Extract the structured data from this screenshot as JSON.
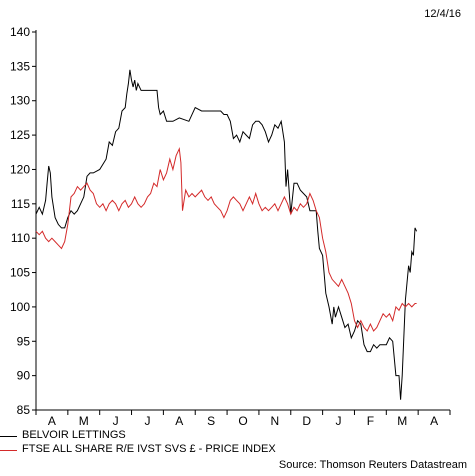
{
  "date_label": "12/4/16",
  "source": "Source: Thomson Reuters Datastream",
  "colors": {
    "belvoir": "#000000",
    "ftse": "#d42a2a",
    "axis": "#000000"
  },
  "chart_data": {
    "type": "line",
    "ylim": [
      85,
      140
    ],
    "yticks": [
      85,
      90,
      95,
      100,
      105,
      110,
      115,
      120,
      125,
      130,
      135,
      140
    ],
    "months": [
      "A",
      "M",
      "J",
      "J",
      "A",
      "S",
      "O",
      "N",
      "D",
      "J",
      "F",
      "M",
      "A"
    ],
    "grid": false,
    "legend_position": "bottom-left",
    "series": [
      {
        "name": "BELVOIR LETTINGS",
        "color": "#000000",
        "values": [
          [
            0.0,
            113.5
          ],
          [
            0.1,
            114.5
          ],
          [
            0.2,
            113.5
          ],
          [
            0.3,
            115.5
          ],
          [
            0.35,
            118
          ],
          [
            0.4,
            120.5
          ],
          [
            0.45,
            119.5
          ],
          [
            0.5,
            116
          ],
          [
            0.6,
            113
          ],
          [
            0.7,
            112
          ],
          [
            0.8,
            111.5
          ],
          [
            0.9,
            111.5
          ],
          [
            1.0,
            113
          ],
          [
            1.1,
            114
          ],
          [
            1.2,
            113.5
          ],
          [
            1.3,
            114
          ],
          [
            1.4,
            115
          ],
          [
            1.5,
            116
          ],
          [
            1.6,
            119
          ],
          [
            1.7,
            119.5
          ],
          [
            1.8,
            119.5
          ],
          [
            2.0,
            120
          ],
          [
            2.2,
            121.5
          ],
          [
            2.3,
            124
          ],
          [
            2.4,
            123.5
          ],
          [
            2.5,
            125.5
          ],
          [
            2.6,
            126
          ],
          [
            2.7,
            128.5
          ],
          [
            2.8,
            129
          ],
          [
            2.85,
            131
          ],
          [
            2.9,
            132.5
          ],
          [
            2.95,
            134.5
          ],
          [
            3.0,
            133
          ],
          [
            3.05,
            132
          ],
          [
            3.1,
            133
          ],
          [
            3.15,
            131.5
          ],
          [
            3.2,
            132.5
          ],
          [
            3.3,
            131.5
          ],
          [
            3.5,
            131.5
          ],
          [
            3.7,
            131.5
          ],
          [
            3.8,
            131.5
          ],
          [
            3.85,
            129
          ],
          [
            3.9,
            128
          ],
          [
            4.0,
            128.5
          ],
          [
            4.1,
            127
          ],
          [
            4.3,
            127
          ],
          [
            4.5,
            127.5
          ],
          [
            4.8,
            127
          ],
          [
            5.0,
            129
          ],
          [
            5.2,
            128.5
          ],
          [
            5.5,
            128.5
          ],
          [
            5.8,
            128.5
          ],
          [
            5.9,
            128
          ],
          [
            6.0,
            128
          ],
          [
            6.1,
            127
          ],
          [
            6.2,
            124.5
          ],
          [
            6.3,
            125
          ],
          [
            6.4,
            124
          ],
          [
            6.5,
            125.5
          ],
          [
            6.6,
            125
          ],
          [
            6.7,
            124.5
          ],
          [
            6.8,
            126.5
          ],
          [
            6.9,
            127
          ],
          [
            7.0,
            127
          ],
          [
            7.1,
            126.5
          ],
          [
            7.2,
            125.5
          ],
          [
            7.3,
            124
          ],
          [
            7.4,
            125
          ],
          [
            7.5,
            126.5
          ],
          [
            7.6,
            126
          ],
          [
            7.7,
            127
          ],
          [
            7.8,
            124
          ],
          [
            7.85,
            117.5
          ],
          [
            7.9,
            120
          ],
          [
            8.0,
            113.5
          ],
          [
            8.1,
            118
          ],
          [
            8.2,
            118
          ],
          [
            8.3,
            117
          ],
          [
            8.5,
            116
          ],
          [
            8.6,
            114
          ],
          [
            8.7,
            114
          ],
          [
            8.8,
            114
          ],
          [
            8.85,
            111
          ],
          [
            8.9,
            108.5
          ],
          [
            9.0,
            107.5
          ],
          [
            9.1,
            102
          ],
          [
            9.2,
            100
          ],
          [
            9.3,
            97.5
          ],
          [
            9.35,
            100
          ],
          [
            9.4,
            98.5
          ],
          [
            9.5,
            100
          ],
          [
            9.6,
            98.5
          ],
          [
            9.7,
            97
          ],
          [
            9.8,
            97.5
          ],
          [
            9.9,
            95.5
          ],
          [
            10.0,
            96.5
          ],
          [
            10.1,
            98
          ],
          [
            10.2,
            97.5
          ],
          [
            10.3,
            94.5
          ],
          [
            10.4,
            93.5
          ],
          [
            10.5,
            93.5
          ],
          [
            10.6,
            94.5
          ],
          [
            10.7,
            94
          ],
          [
            10.8,
            94.5
          ],
          [
            11.0,
            94.5
          ],
          [
            11.1,
            95.5
          ],
          [
            11.2,
            95
          ],
          [
            11.3,
            90
          ],
          [
            11.4,
            90
          ],
          [
            11.45,
            86.5
          ],
          [
            11.5,
            90
          ],
          [
            11.6,
            101
          ],
          [
            11.7,
            106
          ],
          [
            11.75,
            105
          ],
          [
            11.8,
            108
          ],
          [
            11.85,
            107.5
          ],
          [
            11.9,
            111.5
          ],
          [
            11.95,
            111
          ]
        ]
      },
      {
        "name": "FTSE ALL SHARE R/E IVST SVS £ - PRICE INDEX",
        "color": "#d42a2a",
        "values": [
          [
            0.0,
            111
          ],
          [
            0.1,
            110.5
          ],
          [
            0.2,
            111
          ],
          [
            0.3,
            110
          ],
          [
            0.4,
            109.5
          ],
          [
            0.5,
            110
          ],
          [
            0.6,
            109.5
          ],
          [
            0.7,
            109
          ],
          [
            0.8,
            108.5
          ],
          [
            0.9,
            109.5
          ],
          [
            1.0,
            112
          ],
          [
            1.1,
            116
          ],
          [
            1.2,
            116.5
          ],
          [
            1.3,
            117.5
          ],
          [
            1.4,
            117
          ],
          [
            1.5,
            117.5
          ],
          [
            1.6,
            118
          ],
          [
            1.7,
            117
          ],
          [
            1.8,
            116.5
          ],
          [
            1.9,
            115
          ],
          [
            2.0,
            114.5
          ],
          [
            2.1,
            115
          ],
          [
            2.2,
            114
          ],
          [
            2.3,
            115
          ],
          [
            2.4,
            115.5
          ],
          [
            2.5,
            115
          ],
          [
            2.6,
            114
          ],
          [
            2.7,
            115
          ],
          [
            2.8,
            115.5
          ],
          [
            2.9,
            114.5
          ],
          [
            3.0,
            115
          ],
          [
            3.1,
            116
          ],
          [
            3.2,
            115
          ],
          [
            3.3,
            114.5
          ],
          [
            3.4,
            115
          ],
          [
            3.5,
            116
          ],
          [
            3.6,
            116.5
          ],
          [
            3.7,
            118
          ],
          [
            3.8,
            117.5
          ],
          [
            3.9,
            120
          ],
          [
            4.0,
            118.5
          ],
          [
            4.1,
            119.5
          ],
          [
            4.2,
            121.5
          ],
          [
            4.3,
            120
          ],
          [
            4.4,
            122
          ],
          [
            4.5,
            123
          ],
          [
            4.55,
            121
          ],
          [
            4.6,
            114
          ],
          [
            4.7,
            117
          ],
          [
            4.8,
            116
          ],
          [
            4.9,
            116.5
          ],
          [
            5.0,
            116
          ],
          [
            5.1,
            116.5
          ],
          [
            5.2,
            117
          ],
          [
            5.3,
            116
          ],
          [
            5.4,
            115.5
          ],
          [
            5.5,
            116
          ],
          [
            5.6,
            115
          ],
          [
            5.7,
            114.5
          ],
          [
            5.8,
            114
          ],
          [
            5.9,
            113
          ],
          [
            6.0,
            114
          ],
          [
            6.1,
            115.5
          ],
          [
            6.2,
            116
          ],
          [
            6.3,
            115.5
          ],
          [
            6.4,
            115
          ],
          [
            6.5,
            114
          ],
          [
            6.6,
            115
          ],
          [
            6.7,
            116
          ],
          [
            6.8,
            115
          ],
          [
            6.9,
            116.5
          ],
          [
            7.0,
            115
          ],
          [
            7.1,
            114
          ],
          [
            7.2,
            114.5
          ],
          [
            7.3,
            114
          ],
          [
            7.4,
            114.5
          ],
          [
            7.5,
            115
          ],
          [
            7.6,
            114
          ],
          [
            7.7,
            115
          ],
          [
            7.8,
            116
          ],
          [
            7.9,
            115
          ],
          [
            8.0,
            113.5
          ],
          [
            8.1,
            114.5
          ],
          [
            8.2,
            114
          ],
          [
            8.3,
            115
          ],
          [
            8.4,
            114.5
          ],
          [
            8.5,
            115
          ],
          [
            8.6,
            116.5
          ],
          [
            8.7,
            115.5
          ],
          [
            8.8,
            114
          ],
          [
            8.9,
            113
          ],
          [
            9.0,
            110
          ],
          [
            9.1,
            108
          ],
          [
            9.2,
            105
          ],
          [
            9.3,
            104
          ],
          [
            9.4,
            103.5
          ],
          [
            9.5,
            103
          ],
          [
            9.6,
            104
          ],
          [
            9.7,
            103
          ],
          [
            9.8,
            102
          ],
          [
            9.9,
            100.5
          ],
          [
            10.0,
            98
          ],
          [
            10.1,
            97
          ],
          [
            10.2,
            98
          ],
          [
            10.3,
            97
          ],
          [
            10.4,
            96.5
          ],
          [
            10.5,
            97.5
          ],
          [
            10.6,
            96.5
          ],
          [
            10.7,
            97
          ],
          [
            10.8,
            98
          ],
          [
            10.9,
            99
          ],
          [
            11.0,
            98.5
          ],
          [
            11.1,
            99
          ],
          [
            11.2,
            98
          ],
          [
            11.3,
            100
          ],
          [
            11.4,
            99.5
          ],
          [
            11.5,
            100.5
          ],
          [
            11.6,
            100
          ],
          [
            11.7,
            100.5
          ],
          [
            11.8,
            100
          ],
          [
            11.9,
            100.5
          ],
          [
            11.95,
            100.5
          ]
        ]
      }
    ]
  }
}
